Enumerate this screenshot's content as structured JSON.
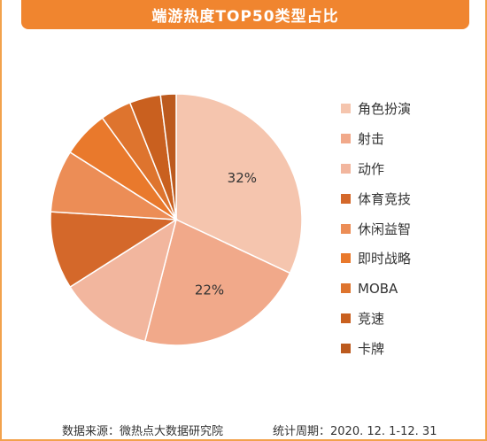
{
  "chart_data": {
    "type": "pie",
    "title": "端游热度TOP50类型占比",
    "categories": [
      "角色扮演",
      "射击",
      "动作",
      "体育竞技",
      "休闲益智",
      "即时战略",
      "MOBA",
      "竞速",
      "卡牌"
    ],
    "values": [
      32,
      22,
      12,
      10,
      8,
      6,
      4,
      4,
      2
    ],
    "slice_labels": [
      "32%",
      "22%",
      "",
      "",
      "",
      "",
      "",
      "",
      ""
    ],
    "colors": [
      "#f5c5ae",
      "#f1a98a",
      "#f2b69e",
      "#d4682a",
      "#ec8d56",
      "#e9792c",
      "#de742e",
      "#c9601f",
      "#bc5a1e"
    ],
    "legend_position": "right"
  },
  "footer": {
    "source": "数据来源：微热点大数据研究院",
    "period": "统计周期：2020. 12. 1-12. 31"
  }
}
